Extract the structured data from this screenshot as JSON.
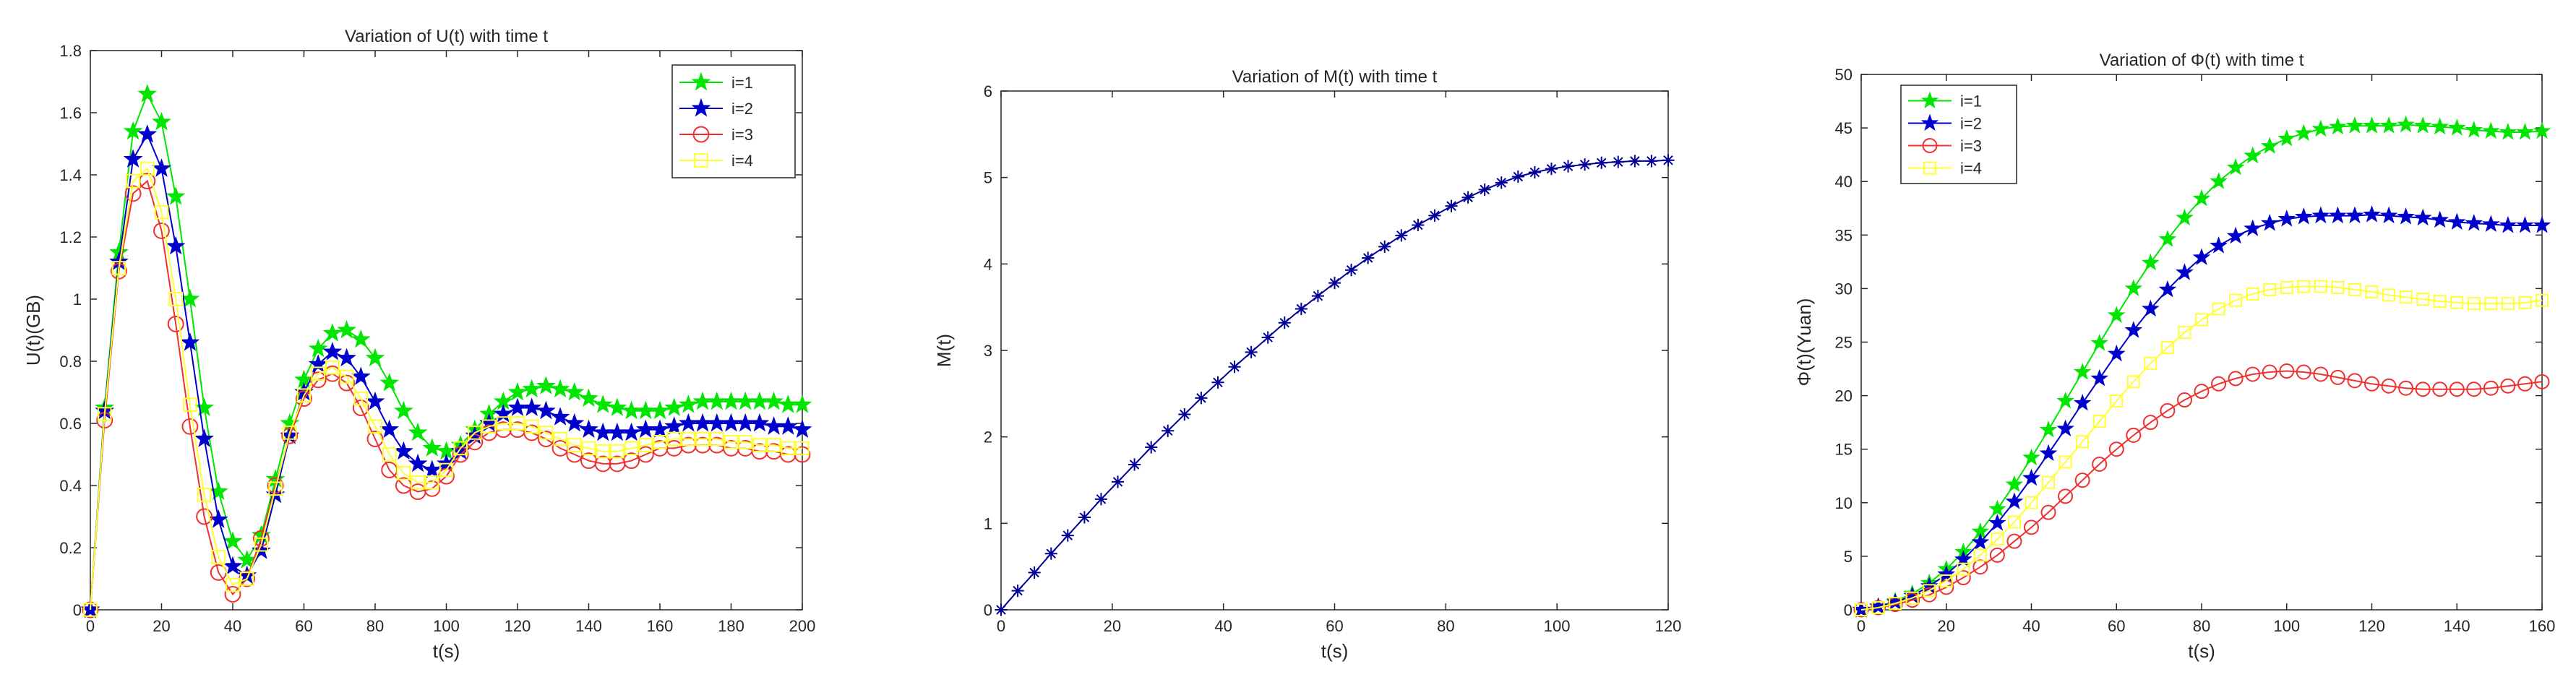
{
  "chart_data": [
    {
      "type": "line",
      "title": "Variation of U(t) with time t",
      "xlabel": "t(s)",
      "ylabel": "U(t)(GB)",
      "xlim": [
        0,
        200
      ],
      "ylim": [
        0,
        1.8
      ],
      "xticks": [
        0,
        20,
        40,
        60,
        80,
        100,
        120,
        140,
        160,
        180,
        200
      ],
      "yticks": [
        0,
        0.2,
        0.4,
        0.6,
        0.8,
        1,
        1.2,
        1.4,
        1.6,
        1.8
      ],
      "legend": "top-right",
      "grid": false,
      "x": [
        0,
        4,
        8,
        12,
        16,
        20,
        24,
        28,
        32,
        36,
        40,
        44,
        48,
        52,
        56,
        60,
        64,
        68,
        72,
        76,
        80,
        84,
        88,
        92,
        96,
        100,
        104,
        108,
        112,
        116,
        120,
        124,
        128,
        132,
        136,
        140,
        144,
        148,
        152,
        156,
        160,
        164,
        168,
        172,
        176,
        180,
        184,
        188,
        192,
        196,
        200
      ],
      "series": [
        {
          "name": "i=1",
          "color": "#00e600",
          "marker": "pentagram",
          "values": [
            0,
            0.65,
            1.15,
            1.54,
            1.66,
            1.57,
            1.33,
            1.0,
            0.65,
            0.38,
            0.22,
            0.16,
            0.24,
            0.42,
            0.6,
            0.74,
            0.84,
            0.89,
            0.9,
            0.87,
            0.81,
            0.73,
            0.64,
            0.57,
            0.52,
            0.51,
            0.53,
            0.58,
            0.63,
            0.67,
            0.7,
            0.71,
            0.72,
            0.71,
            0.7,
            0.68,
            0.66,
            0.65,
            0.64,
            0.64,
            0.64,
            0.65,
            0.66,
            0.67,
            0.67,
            0.67,
            0.67,
            0.67,
            0.67,
            0.66,
            0.66
          ]
        },
        {
          "name": "i=2",
          "color": "#0000cc",
          "marker": "pentagram",
          "values": [
            0,
            0.64,
            1.12,
            1.45,
            1.53,
            1.42,
            1.17,
            0.86,
            0.55,
            0.29,
            0.14,
            0.11,
            0.19,
            0.37,
            0.56,
            0.7,
            0.79,
            0.83,
            0.81,
            0.75,
            0.67,
            0.58,
            0.51,
            0.47,
            0.45,
            0.47,
            0.51,
            0.56,
            0.6,
            0.63,
            0.65,
            0.65,
            0.64,
            0.62,
            0.6,
            0.58,
            0.57,
            0.57,
            0.57,
            0.58,
            0.58,
            0.59,
            0.6,
            0.6,
            0.6,
            0.6,
            0.6,
            0.6,
            0.59,
            0.59,
            0.58
          ]
        },
        {
          "name": "i=3",
          "color": "#f03030",
          "marker": "circle",
          "values": [
            0,
            0.61,
            1.09,
            1.34,
            1.38,
            1.22,
            0.92,
            0.59,
            0.3,
            0.12,
            0.05,
            0.1,
            0.23,
            0.4,
            0.56,
            0.68,
            0.74,
            0.76,
            0.73,
            0.65,
            0.55,
            0.45,
            0.4,
            0.38,
            0.39,
            0.43,
            0.5,
            0.54,
            0.57,
            0.58,
            0.58,
            0.57,
            0.55,
            0.52,
            0.5,
            0.48,
            0.47,
            0.47,
            0.48,
            0.5,
            0.52,
            0.52,
            0.53,
            0.53,
            0.53,
            0.52,
            0.52,
            0.51,
            0.51,
            0.5,
            0.5
          ]
        },
        {
          "name": "i=4",
          "color": "#ffff33",
          "marker": "square",
          "values": [
            0,
            0.63,
            1.1,
            1.38,
            1.42,
            1.28,
            1.0,
            0.66,
            0.37,
            0.17,
            0.08,
            0.1,
            0.21,
            0.39,
            0.57,
            0.69,
            0.76,
            0.78,
            0.75,
            0.68,
            0.59,
            0.5,
            0.44,
            0.41,
            0.41,
            0.45,
            0.52,
            0.57,
            0.59,
            0.6,
            0.6,
            0.59,
            0.57,
            0.55,
            0.53,
            0.52,
            0.51,
            0.51,
            0.52,
            0.53,
            0.54,
            0.55,
            0.55,
            0.55,
            0.55,
            0.54,
            0.54,
            0.53,
            0.53,
            0.52,
            0.52
          ]
        }
      ]
    },
    {
      "type": "line",
      "title": "Variation of M(t) with time t",
      "xlabel": "t(s)",
      "ylabel": "M(t)",
      "xlim": [
        0,
        120
      ],
      "ylim": [
        0,
        6
      ],
      "xticks": [
        0,
        20,
        40,
        60,
        80,
        100,
        120
      ],
      "yticks": [
        0,
        1,
        2,
        3,
        4,
        5,
        6
      ],
      "grid": false,
      "x": [
        0,
        3,
        6,
        9,
        12,
        15,
        18,
        21,
        24,
        27,
        30,
        33,
        36,
        39,
        42,
        45,
        48,
        51,
        54,
        57,
        60,
        63,
        66,
        69,
        72,
        75,
        78,
        81,
        84,
        87,
        90,
        93,
        96,
        99,
        102,
        105,
        108,
        111,
        114,
        117,
        120
      ],
      "series": [
        {
          "color": "#000099",
          "marker": "asterisk",
          "values": [
            0,
            0.22,
            0.43,
            0.65,
            0.86,
            1.07,
            1.28,
            1.48,
            1.68,
            1.88,
            2.07,
            2.26,
            2.45,
            2.63,
            2.81,
            2.98,
            3.15,
            3.32,
            3.48,
            3.63,
            3.78,
            3.93,
            4.07,
            4.2,
            4.33,
            4.45,
            4.56,
            4.67,
            4.77,
            4.86,
            4.94,
            5.01,
            5.06,
            5.1,
            5.13,
            5.15,
            5.17,
            5.18,
            5.19,
            5.19,
            5.2
          ]
        }
      ]
    },
    {
      "type": "line",
      "title": "Variation of Φ(t) with time t",
      "xlabel": "t(s)",
      "ylabel": "Φ(t)(Yuan)",
      "xlim": [
        0,
        160
      ],
      "ylim": [
        0,
        50
      ],
      "xticks": [
        0,
        20,
        40,
        60,
        80,
        100,
        120,
        140,
        160
      ],
      "yticks": [
        0,
        5,
        10,
        15,
        20,
        25,
        30,
        35,
        40,
        45,
        50
      ],
      "legend": "top-left",
      "grid": false,
      "x": [
        0,
        4,
        8,
        12,
        16,
        20,
        24,
        28,
        32,
        36,
        40,
        44,
        48,
        52,
        56,
        60,
        64,
        68,
        72,
        76,
        80,
        84,
        88,
        92,
        96,
        100,
        104,
        108,
        112,
        116,
        120,
        124,
        128,
        132,
        136,
        140,
        144,
        148,
        152,
        156,
        160
      ],
      "series": [
        {
          "name": "i=1",
          "color": "#00e600",
          "marker": "pentagram",
          "values": [
            0,
            0.3,
            0.8,
            1.5,
            2.5,
            3.8,
            5.4,
            7.3,
            9.4,
            11.7,
            14.2,
            16.8,
            19.5,
            22.2,
            24.9,
            27.5,
            30.0,
            32.4,
            34.6,
            36.6,
            38.4,
            40.0,
            41.3,
            42.4,
            43.3,
            44.0,
            44.5,
            44.9,
            45.1,
            45.2,
            45.2,
            45.2,
            45.3,
            45.2,
            45.1,
            45.0,
            44.8,
            44.7,
            44.6,
            44.6,
            44.7
          ]
        },
        {
          "name": "i=2",
          "color": "#0000cc",
          "marker": "pentagram",
          "values": [
            0,
            0.3,
            0.7,
            1.3,
            2.2,
            3.3,
            4.7,
            6.3,
            8.1,
            10.1,
            12.3,
            14.6,
            16.9,
            19.3,
            21.6,
            23.9,
            26.1,
            28.1,
            29.9,
            31.5,
            32.9,
            34.0,
            34.9,
            35.6,
            36.1,
            36.5,
            36.7,
            36.8,
            36.8,
            36.8,
            36.9,
            36.8,
            36.7,
            36.6,
            36.4,
            36.2,
            36.1,
            36.0,
            35.9,
            35.9,
            35.9
          ]
        },
        {
          "name": "i=3",
          "color": "#f03030",
          "marker": "circle",
          "values": [
            0,
            0.2,
            0.5,
            0.9,
            1.4,
            2.1,
            3.0,
            4.0,
            5.1,
            6.4,
            7.7,
            9.1,
            10.6,
            12.1,
            13.6,
            15.0,
            16.3,
            17.5,
            18.6,
            19.6,
            20.4,
            21.1,
            21.6,
            22.0,
            22.2,
            22.3,
            22.2,
            22.0,
            21.7,
            21.4,
            21.1,
            20.9,
            20.7,
            20.6,
            20.6,
            20.6,
            20.6,
            20.7,
            20.9,
            21.1,
            21.3
          ]
        },
        {
          "name": "i=4",
          "color": "#ffff33",
          "marker": "square",
          "values": [
            0,
            0.2,
            0.6,
            1.1,
            1.8,
            2.7,
            3.8,
            5.1,
            6.6,
            8.2,
            10.0,
            11.9,
            13.8,
            15.7,
            17.6,
            19.5,
            21.3,
            23.0,
            24.5,
            25.9,
            27.1,
            28.1,
            28.9,
            29.5,
            29.9,
            30.1,
            30.2,
            30.2,
            30.1,
            29.9,
            29.7,
            29.4,
            29.2,
            29.0,
            28.8,
            28.7,
            28.6,
            28.6,
            28.6,
            28.7,
            28.9
          ]
        }
      ]
    }
  ]
}
